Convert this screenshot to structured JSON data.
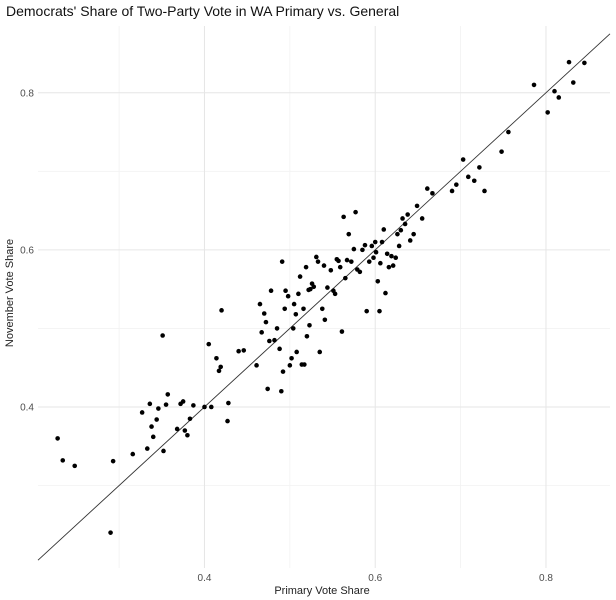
{
  "chart_data": {
    "type": "scatter",
    "title": "Democrats' Share of Two-Party Vote in WA Primary vs. General",
    "xlabel": "Primary Vote Share",
    "ylabel": "November Vote Share",
    "xlim": [
      0.205,
      0.875
    ],
    "ylim": [
      0.195,
      0.885
    ],
    "x_ticks": [
      0.4,
      0.6,
      0.8
    ],
    "y_ticks": [
      0.4,
      0.6,
      0.8
    ],
    "x_tick_labels": [
      "0.4",
      "0.6",
      "0.8"
    ],
    "y_tick_labels": [
      "0.4",
      "0.6",
      "0.8"
    ],
    "grid": true,
    "reference_line": {
      "type": "identity",
      "from": [
        0.205,
        0.205
      ],
      "to": [
        0.875,
        0.875
      ]
    },
    "colors": {
      "points": "#000000",
      "line": "#333333",
      "grid_major": "#e6e6e6",
      "grid_minor": "#f2f2f2"
    },
    "points": [
      [
        0.228,
        0.36
      ],
      [
        0.234,
        0.332
      ],
      [
        0.248,
        0.325
      ],
      [
        0.29,
        0.24
      ],
      [
        0.293,
        0.331
      ],
      [
        0.316,
        0.34
      ],
      [
        0.327,
        0.393
      ],
      [
        0.333,
        0.347
      ],
      [
        0.336,
        0.404
      ],
      [
        0.338,
        0.375
      ],
      [
        0.34,
        0.362
      ],
      [
        0.344,
        0.384
      ],
      [
        0.346,
        0.398
      ],
      [
        0.351,
        0.491
      ],
      [
        0.352,
        0.344
      ],
      [
        0.355,
        0.403
      ],
      [
        0.357,
        0.416
      ],
      [
        0.368,
        0.372
      ],
      [
        0.372,
        0.404
      ],
      [
        0.375,
        0.407
      ],
      [
        0.377,
        0.37
      ],
      [
        0.38,
        0.364
      ],
      [
        0.383,
        0.385
      ],
      [
        0.387,
        0.402
      ],
      [
        0.4,
        0.4
      ],
      [
        0.405,
        0.48
      ],
      [
        0.408,
        0.4
      ],
      [
        0.414,
        0.462
      ],
      [
        0.417,
        0.446
      ],
      [
        0.419,
        0.451
      ],
      [
        0.42,
        0.523
      ],
      [
        0.427,
        0.382
      ],
      [
        0.428,
        0.405
      ],
      [
        0.44,
        0.471
      ],
      [
        0.446,
        0.472
      ],
      [
        0.461,
        0.453
      ],
      [
        0.465,
        0.531
      ],
      [
        0.467,
        0.495
      ],
      [
        0.47,
        0.519
      ],
      [
        0.472,
        0.508
      ],
      [
        0.474,
        0.423
      ],
      [
        0.476,
        0.484
      ],
      [
        0.478,
        0.548
      ],
      [
        0.482,
        0.485
      ],
      [
        0.485,
        0.5
      ],
      [
        0.488,
        0.474
      ],
      [
        0.49,
        0.42
      ],
      [
        0.491,
        0.585
      ],
      [
        0.492,
        0.445
      ],
      [
        0.494,
        0.525
      ],
      [
        0.495,
        0.548
      ],
      [
        0.498,
        0.541
      ],
      [
        0.5,
        0.453
      ],
      [
        0.502,
        0.462
      ],
      [
        0.504,
        0.5
      ],
      [
        0.505,
        0.531
      ],
      [
        0.507,
        0.518
      ],
      [
        0.508,
        0.47
      ],
      [
        0.51,
        0.544
      ],
      [
        0.512,
        0.566
      ],
      [
        0.514,
        0.454
      ],
      [
        0.516,
        0.525
      ],
      [
        0.517,
        0.454
      ],
      [
        0.519,
        0.578
      ],
      [
        0.52,
        0.49
      ],
      [
        0.522,
        0.549
      ],
      [
        0.523,
        0.504
      ],
      [
        0.524,
        0.55
      ],
      [
        0.526,
        0.557
      ],
      [
        0.528,
        0.553
      ],
      [
        0.531,
        0.591
      ],
      [
        0.533,
        0.585
      ],
      [
        0.535,
        0.47
      ],
      [
        0.538,
        0.525
      ],
      [
        0.54,
        0.58
      ],
      [
        0.541,
        0.511
      ],
      [
        0.544,
        0.552
      ],
      [
        0.548,
        0.574
      ],
      [
        0.551,
        0.548
      ],
      [
        0.553,
        0.544
      ],
      [
        0.555,
        0.588
      ],
      [
        0.557,
        0.586
      ],
      [
        0.559,
        0.578
      ],
      [
        0.561,
        0.496
      ],
      [
        0.563,
        0.642
      ],
      [
        0.565,
        0.564
      ],
      [
        0.567,
        0.587
      ],
      [
        0.569,
        0.62
      ],
      [
        0.572,
        0.585
      ],
      [
        0.575,
        0.601
      ],
      [
        0.577,
        0.648
      ],
      [
        0.579,
        0.575
      ],
      [
        0.582,
        0.572
      ],
      [
        0.585,
        0.6
      ],
      [
        0.588,
        0.606
      ],
      [
        0.59,
        0.522
      ],
      [
        0.593,
        0.585
      ],
      [
        0.596,
        0.605
      ],
      [
        0.598,
        0.59
      ],
      [
        0.6,
        0.61
      ],
      [
        0.601,
        0.597
      ],
      [
        0.603,
        0.56
      ],
      [
        0.605,
        0.522
      ],
      [
        0.606,
        0.583
      ],
      [
        0.608,
        0.61
      ],
      [
        0.61,
        0.626
      ],
      [
        0.612,
        0.545
      ],
      [
        0.614,
        0.595
      ],
      [
        0.616,
        0.578
      ],
      [
        0.619,
        0.592
      ],
      [
        0.621,
        0.58
      ],
      [
        0.624,
        0.59
      ],
      [
        0.626,
        0.62
      ],
      [
        0.628,
        0.605
      ],
      [
        0.63,
        0.625
      ],
      [
        0.632,
        0.64
      ],
      [
        0.635,
        0.633
      ],
      [
        0.638,
        0.645
      ],
      [
        0.641,
        0.612
      ],
      [
        0.645,
        0.62
      ],
      [
        0.649,
        0.656
      ],
      [
        0.655,
        0.64
      ],
      [
        0.661,
        0.678
      ],
      [
        0.667,
        0.672
      ],
      [
        0.69,
        0.675
      ],
      [
        0.695,
        0.683
      ],
      [
        0.703,
        0.715
      ],
      [
        0.709,
        0.693
      ],
      [
        0.716,
        0.688
      ],
      [
        0.722,
        0.705
      ],
      [
        0.728,
        0.675
      ],
      [
        0.748,
        0.725
      ],
      [
        0.756,
        0.75
      ],
      [
        0.786,
        0.81
      ],
      [
        0.802,
        0.775
      ],
      [
        0.81,
        0.802
      ],
      [
        0.815,
        0.794
      ],
      [
        0.827,
        0.839
      ],
      [
        0.832,
        0.813
      ],
      [
        0.845,
        0.838
      ]
    ]
  }
}
